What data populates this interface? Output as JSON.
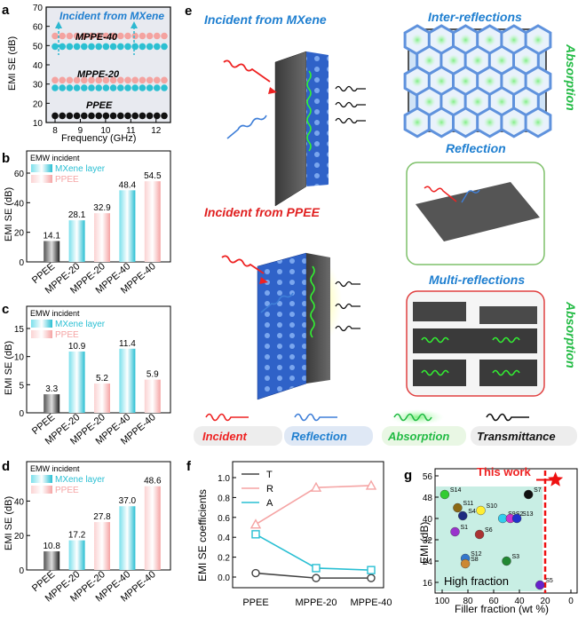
{
  "panel_a": {
    "letter": "a",
    "title": "Incident from MXene",
    "ylabel": "EMI SE (dB)",
    "xlabel": "Frequency (GHz)",
    "yticks": [
      "10",
      "20",
      "30",
      "40",
      "50",
      "60",
      "70"
    ],
    "xticks": [
      "8",
      "9",
      "10",
      "11",
      "12"
    ],
    "labels": [
      "MPPE-40",
      "MPPE-20",
      "PPEE"
    ],
    "colors": {
      "pink": "#f4a3a0",
      "cyan": "#2cc0d2",
      "black": "#111111"
    }
  },
  "panel_b": {
    "letter": "b",
    "legend": [
      "EMW incident",
      "MXene layer",
      "PPEE"
    ],
    "ylabel": "EMI SE (dB)",
    "categories": [
      "PPEE",
      "MPPE-20",
      "MPPE-20",
      "MPPE-40",
      "MPPE-40"
    ],
    "values": [
      "14.1",
      "28.1",
      "32.9",
      "48.4",
      "54.5"
    ],
    "value_nums": [
      14.1,
      28.1,
      32.9,
      48.4,
      54.5
    ],
    "bar_colors": [
      "#333333",
      "#29bfd3",
      "#f5a4a4",
      "#29bfd3",
      "#f5a4a4"
    ],
    "yticks": [
      "0",
      "20",
      "40",
      "60"
    ],
    "ylim": [
      0,
      60
    ]
  },
  "panel_c": {
    "letter": "c",
    "legend": [
      "EMW incident",
      "MXene layer",
      "PPEE"
    ],
    "ylabel": "EMI SE (dB)",
    "categories": [
      "PPEE",
      "MPPE-20",
      "MPPE-20",
      "MPPE-40",
      "MPPE-40"
    ],
    "values": [
      "3.3",
      "10.9",
      "5.2",
      "11.4",
      "5.9"
    ],
    "value_nums": [
      3.3,
      10.9,
      5.2,
      11.4,
      5.9
    ],
    "bar_colors": [
      "#333333",
      "#29bfd3",
      "#f5a4a4",
      "#29bfd3",
      "#f5a4a4"
    ],
    "yticks": [
      "0",
      "5",
      "10",
      "15"
    ],
    "ylim": [
      0,
      15
    ]
  },
  "panel_d": {
    "letter": "d",
    "legend": [
      "EMW incident",
      "MXene layer",
      "PPEE"
    ],
    "ylabel": "EMI SE (dB)",
    "categories": [
      "PPEE",
      "MPPE-20",
      "MPPE-20",
      "MPPE-40",
      "MPPE-40"
    ],
    "values": [
      "10.8",
      "17.2",
      "27.8",
      "37.0",
      "48.6"
    ],
    "value_nums": [
      10.8,
      17.2,
      27.8,
      37.0,
      48.6
    ],
    "bar_colors": [
      "#333333",
      "#29bfd3",
      "#f5a4a4",
      "#29bfd3",
      "#f5a4a4"
    ],
    "yticks": [
      "0",
      "20",
      "40"
    ],
    "ylim": [
      0,
      50
    ]
  },
  "panel_e": {
    "letter": "e",
    "incident_mxene": "Incident from MXene",
    "incident_ppee": "Incident from PPEE",
    "inter_reflections": "Inter-reflections",
    "reflection": "Reflection",
    "multi_reflections": "Multi-reflections",
    "absorption": "Absorption",
    "legend": [
      "Incident",
      "Reflection",
      "Absorption",
      "Transmittance"
    ]
  },
  "panel_f": {
    "letter": "f",
    "ylabel": "EMI SE coefficients",
    "categories": [
      "PPEE",
      "MPPE-20",
      "MPPE-40"
    ],
    "yticks": [
      "0.0",
      "0.2",
      "0.4",
      "0.6",
      "0.8",
      "1.0"
    ],
    "series": [
      {
        "name": "T",
        "color": "#444444",
        "values": [
          0.04,
          -0.01,
          -0.01
        ]
      },
      {
        "name": "R",
        "color": "#f5a4a4",
        "values": [
          0.53,
          0.9,
          0.92
        ]
      },
      {
        "name": "A",
        "color": "#29bfd3",
        "values": [
          0.43,
          0.09,
          0.07
        ]
      }
    ]
  },
  "panel_g": {
    "letter": "g",
    "ylabel": "EMI (dB)",
    "xlabel": "Filler fraction (wt %)",
    "yticks": [
      "16",
      "24",
      "32",
      "40",
      "48",
      "56"
    ],
    "xticks": [
      "100",
      "80",
      "60",
      "40",
      "20",
      "0"
    ],
    "this_work": "This work",
    "high_fraction": "High fraction",
    "points": [
      {
        "label": "S14",
        "x": 98,
        "y": 49,
        "color": "#33cc33"
      },
      {
        "label": "S11",
        "x": 88,
        "y": 44,
        "color": "#8b6914"
      },
      {
        "label": "S4",
        "x": 84,
        "y": 41,
        "color": "#1f2a80"
      },
      {
        "label": "S10",
        "x": 70,
        "y": 43,
        "color": "#ffee33"
      },
      {
        "label": "S7",
        "x": 33,
        "y": 49,
        "color": "#111111"
      },
      {
        "label": "S9",
        "x": 53,
        "y": 40,
        "color": "#33ccee"
      },
      {
        "label": "S2",
        "x": 47,
        "y": 40,
        "color": "#cc33cc"
      },
      {
        "label": "S13",
        "x": 42,
        "y": 40,
        "color": "#2233cc"
      },
      {
        "label": "S1",
        "x": 90,
        "y": 35,
        "color": "#9933cc"
      },
      {
        "label": "S6",
        "x": 71,
        "y": 34,
        "color": "#aa3333"
      },
      {
        "label": "S12",
        "x": 82,
        "y": 25,
        "color": "#3377cc"
      },
      {
        "label": "S8",
        "x": 82,
        "y": 23,
        "color": "#cc8833"
      },
      {
        "label": "S3",
        "x": 50,
        "y": 24,
        "color": "#228833"
      },
      {
        "label": "S5",
        "x": 24,
        "y": 15,
        "color": "#6622cc"
      }
    ],
    "this_work_point": {
      "x": 12,
      "y": 54.5,
      "color": "#ee1111"
    }
  }
}
